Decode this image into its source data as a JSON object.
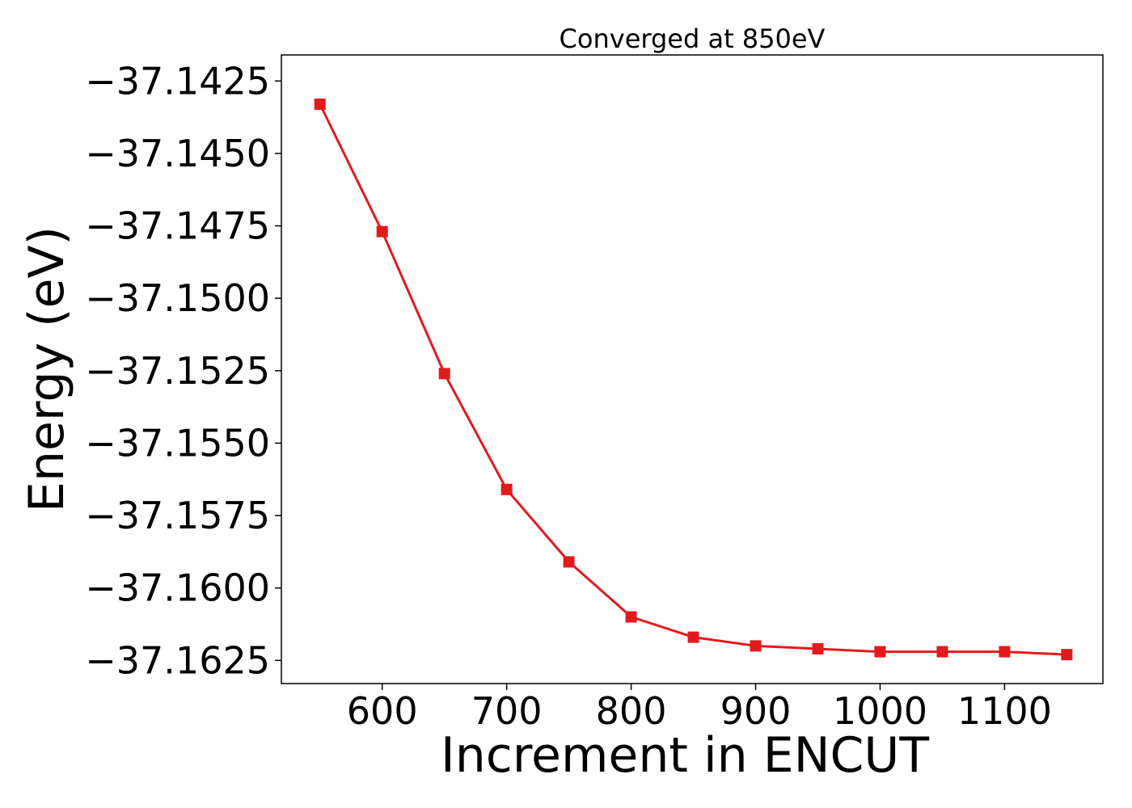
{
  "chart_data": {
    "type": "line",
    "title": "Converged at 850eV",
    "xlabel": "Increment in ENCUT",
    "ylabel": "Energy (eV)",
    "x": [
      550,
      600,
      650,
      700,
      750,
      800,
      850,
      900,
      950,
      1000,
      1050,
      1100,
      1150
    ],
    "series": [
      {
        "values": [
          -37.1433,
          -37.1477,
          -37.1526,
          -37.1566,
          -37.1591,
          -37.161,
          -37.1617,
          -37.162,
          -37.1621,
          -37.1622,
          -37.1622,
          -37.1622,
          -37.1623
        ],
        "color": "#e31a1c",
        "marker": "square"
      }
    ],
    "xlim": [
      519,
      1179
    ],
    "ylim": [
      -37.1633,
      -37.1416
    ],
    "xticks": [
      600,
      700,
      800,
      900,
      1000,
      1100
    ],
    "xtick_labels": [
      "600",
      "700",
      "800",
      "900",
      "1000",
      "1100"
    ],
    "yticks": [
      -37.1425,
      -37.145,
      -37.1475,
      -37.15,
      -37.1525,
      -37.155,
      -37.1575,
      -37.16,
      -37.1625
    ],
    "ytick_labels": [
      "−37.1425",
      "−37.1450",
      "−37.1475",
      "−37.1500",
      "−37.1525",
      "−37.1550",
      "−37.1575",
      "−37.1600",
      "−37.1625"
    ],
    "grid": false,
    "legend": "none"
  }
}
